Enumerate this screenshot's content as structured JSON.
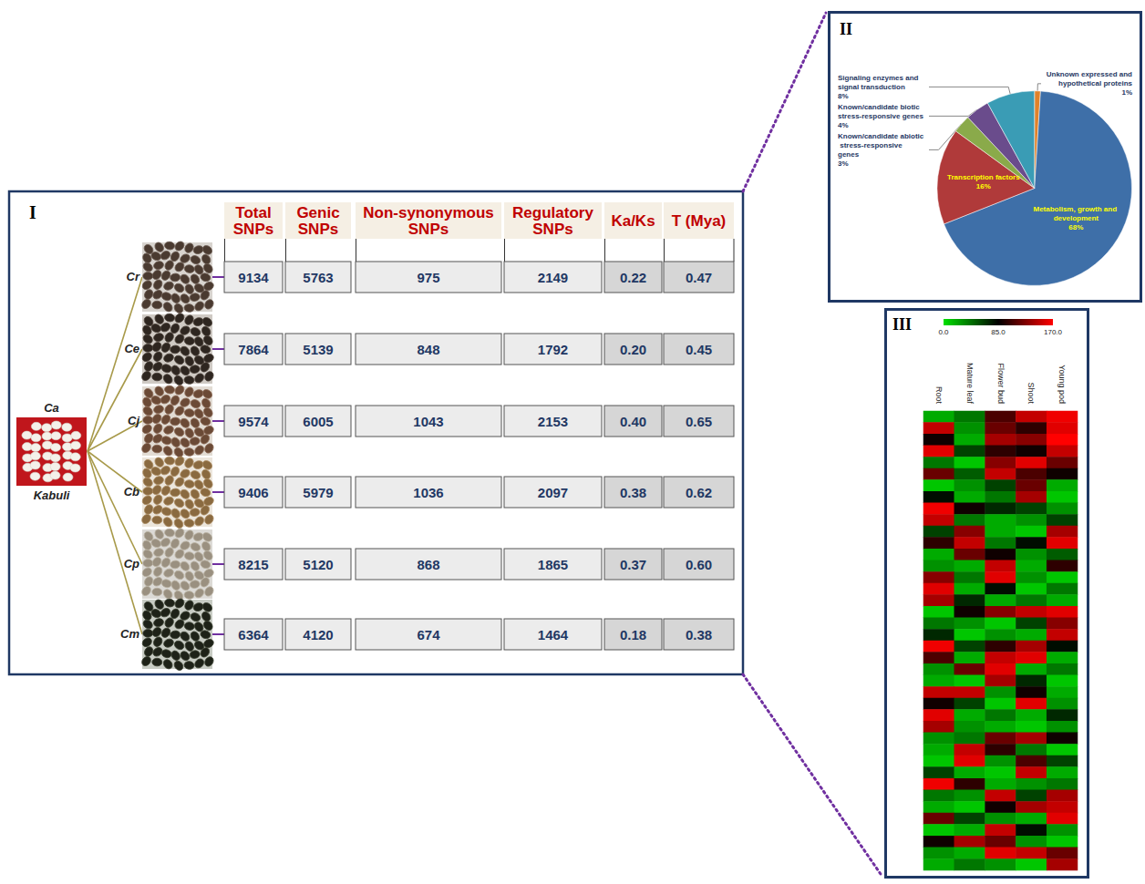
{
  "panel_I": {
    "label": "I",
    "root": {
      "name": "Ca",
      "subtitle": "Kabuli"
    },
    "columns": [
      "Total SNPs",
      "Genic SNPs",
      "Non-synonymous SNPs",
      "Regulatory SNPs",
      "Ka/Ks",
      "T (Mya)"
    ],
    "rows": [
      {
        "species": "Cr",
        "cells": [
          "9134",
          "5763",
          "975",
          "2149",
          "0.22",
          "0.47"
        ]
      },
      {
        "species": "Ce",
        "cells": [
          "7864",
          "5139",
          "848",
          "1792",
          "0.20",
          "0.45"
        ]
      },
      {
        "species": "Cj",
        "cells": [
          "9574",
          "6005",
          "1043",
          "2153",
          "0.40",
          "0.65"
        ]
      },
      {
        "species": "Cb",
        "cells": [
          "9406",
          "5979",
          "1036",
          "2097",
          "0.38",
          "0.62"
        ]
      },
      {
        "species": "Cp",
        "cells": [
          "8215",
          "5120",
          "868",
          "1865",
          "0.37",
          "0.60"
        ]
      },
      {
        "species": "Cm",
        "cells": [
          "6364",
          "4120",
          "674",
          "1464",
          "0.18",
          "0.38"
        ]
      }
    ]
  },
  "chart_data": [
    {
      "label": "II",
      "type": "pie",
      "categories": [
        "Unknown expressed and hypothetical proteins",
        "Metabolism, growth and development",
        "Transcription factors",
        "Known/candidate abiotic stress-responsive genes",
        "Known/candidate biotic stress-responsive genes",
        "Signaling enzymes and signal transduction"
      ],
      "values": [
        1,
        68,
        16,
        3,
        4,
        8
      ],
      "value_labels": [
        "1%",
        "68%",
        "16%",
        "3%",
        "4%",
        "8%"
      ],
      "colors": [
        "#e0822a",
        "#3e6fa8",
        "#b03a3a",
        "#8aaa4a",
        "#6a4c8c",
        "#3a9cb5"
      ],
      "data_labels": true
    },
    {
      "label": "III",
      "type": "heatmap",
      "x": [
        "Root",
        "Mature leaf",
        "Flower bud",
        "Shoot",
        "Young pod"
      ],
      "tick_labels": "x",
      "colorbar": {
        "range": [
          0,
          170
        ],
        "ticks": [
          {
            "value": 0,
            "label": "0.0"
          },
          {
            "value": 85,
            "label": "85.0"
          },
          {
            "value": 170,
            "label": "170.0"
          }
        ],
        "colors": [
          "#00e000",
          "#000000",
          "#ff0000"
        ]
      },
      "cells": [
        [
          20,
          40,
          110,
          150,
          165
        ],
        [
          150,
          30,
          120,
          100,
          160
        ],
        [
          90,
          20,
          140,
          130,
          170
        ],
        [
          160,
          60,
          100,
          90,
          150
        ],
        [
          40,
          10,
          130,
          160,
          120
        ],
        [
          120,
          50,
          150,
          110,
          90
        ],
        [
          10,
          30,
          60,
          120,
          20
        ],
        [
          80,
          20,
          40,
          140,
          10
        ],
        [
          165,
          90,
          70,
          60,
          30
        ],
        [
          150,
          40,
          20,
          30,
          60
        ],
        [
          60,
          130,
          20,
          10,
          140
        ],
        [
          100,
          150,
          40,
          80,
          160
        ],
        [
          20,
          120,
          90,
          30,
          50
        ],
        [
          30,
          20,
          150,
          20,
          100
        ],
        [
          130,
          40,
          160,
          30,
          10
        ],
        [
          160,
          20,
          80,
          10,
          40
        ],
        [
          140,
          70,
          20,
          40,
          20
        ],
        [
          10,
          90,
          130,
          150,
          160
        ],
        [
          40,
          30,
          10,
          60,
          130
        ],
        [
          70,
          10,
          30,
          20,
          150
        ],
        [
          165,
          60,
          100,
          140,
          80
        ],
        [
          110,
          20,
          150,
          160,
          20
        ],
        [
          30,
          120,
          160,
          20,
          40
        ],
        [
          20,
          10,
          140,
          70,
          10
        ],
        [
          150,
          150,
          30,
          90,
          20
        ],
        [
          90,
          60,
          10,
          160,
          30
        ],
        [
          160,
          20,
          40,
          20,
          70
        ],
        [
          140,
          30,
          20,
          10,
          30
        ],
        [
          30,
          40,
          120,
          140,
          90
        ],
        [
          20,
          150,
          100,
          40,
          10
        ],
        [
          10,
          160,
          30,
          110,
          60
        ],
        [
          60,
          20,
          10,
          150,
          20
        ],
        [
          165,
          100,
          20,
          30,
          40
        ],
        [
          40,
          30,
          150,
          60,
          140
        ],
        [
          20,
          10,
          90,
          140,
          150
        ],
        [
          120,
          60,
          30,
          20,
          160
        ],
        [
          10,
          20,
          150,
          80,
          30
        ],
        [
          90,
          140,
          120,
          30,
          10
        ],
        [
          30,
          20,
          160,
          150,
          120
        ],
        [
          20,
          40,
          30,
          10,
          140
        ]
      ]
    }
  ]
}
